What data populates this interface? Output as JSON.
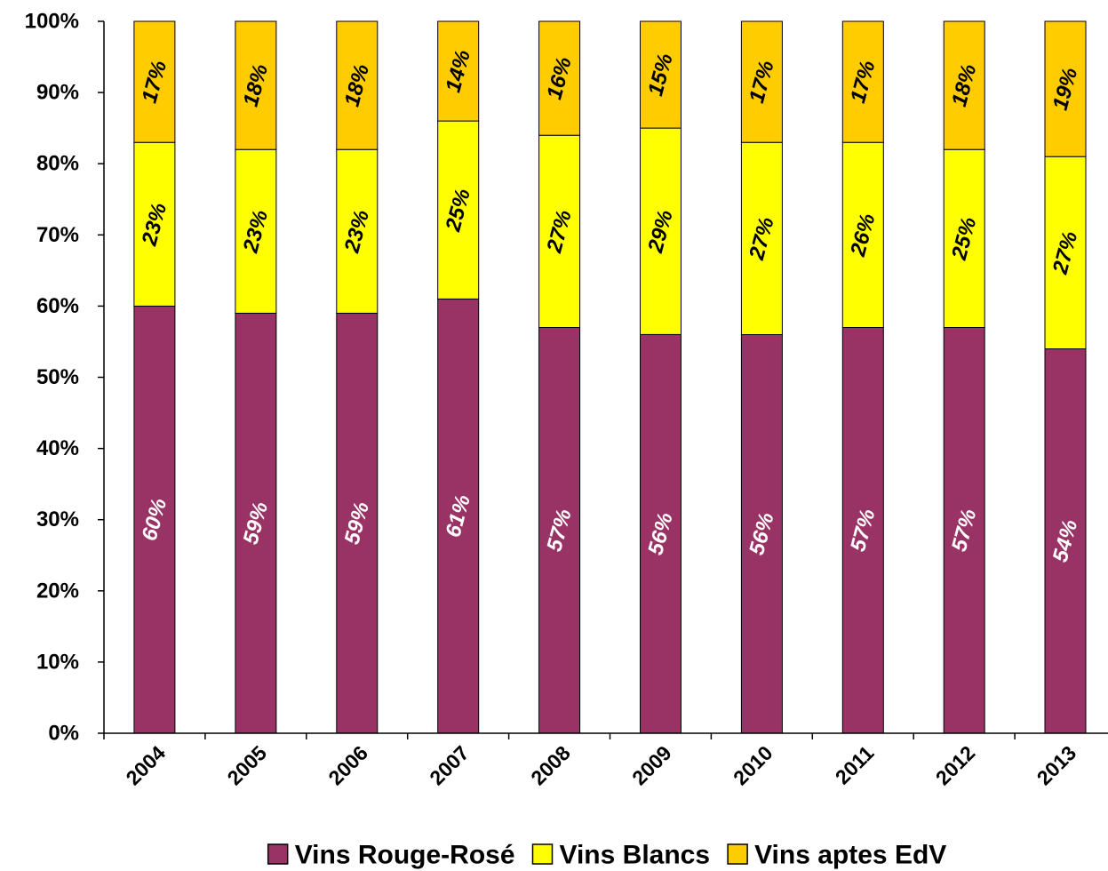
{
  "chart_data": {
    "type": "bar",
    "stacked": true,
    "percent_stacked": true,
    "categories": [
      "2004",
      "2005",
      "2006",
      "2007",
      "2008",
      "2009",
      "2010",
      "2011",
      "2012",
      "2013"
    ],
    "series": [
      {
        "name": "Vins Rouge-Rosé",
        "color": "#993366",
        "label_color": "#ffffff",
        "values": [
          60,
          59,
          59,
          61,
          57,
          56,
          56,
          57,
          57,
          54
        ],
        "labels": [
          "60%",
          "59%",
          "59%",
          "61%",
          "57%",
          "56%",
          "56%",
          "57%",
          "57%",
          "54%"
        ]
      },
      {
        "name": "Vins Blancs",
        "color": "#ffff00",
        "label_color": "#000000",
        "values": [
          23,
          23,
          23,
          25,
          27,
          29,
          27,
          26,
          25,
          27
        ],
        "labels": [
          "23%",
          "23%",
          "23%",
          "25%",
          "27%",
          "29%",
          "27%",
          "26%",
          "25%",
          "27%"
        ]
      },
      {
        "name": "Vins aptes EdV",
        "color": "#ffcc00",
        "label_color": "#000000",
        "values": [
          17,
          18,
          18,
          14,
          16,
          15,
          17,
          17,
          18,
          19
        ],
        "labels": [
          "17%",
          "18%",
          "18%",
          "14%",
          "16%",
          "15%",
          "17%",
          "17%",
          "18%",
          "19%"
        ]
      }
    ],
    "y_ticks": [
      "0%",
      "10%",
      "20%",
      "30%",
      "40%",
      "50%",
      "60%",
      "70%",
      "80%",
      "90%",
      "100%"
    ],
    "ylim": [
      0,
      100
    ],
    "title": "",
    "xlabel": "",
    "ylabel": "",
    "grid": false,
    "legend_position": "bottom"
  }
}
